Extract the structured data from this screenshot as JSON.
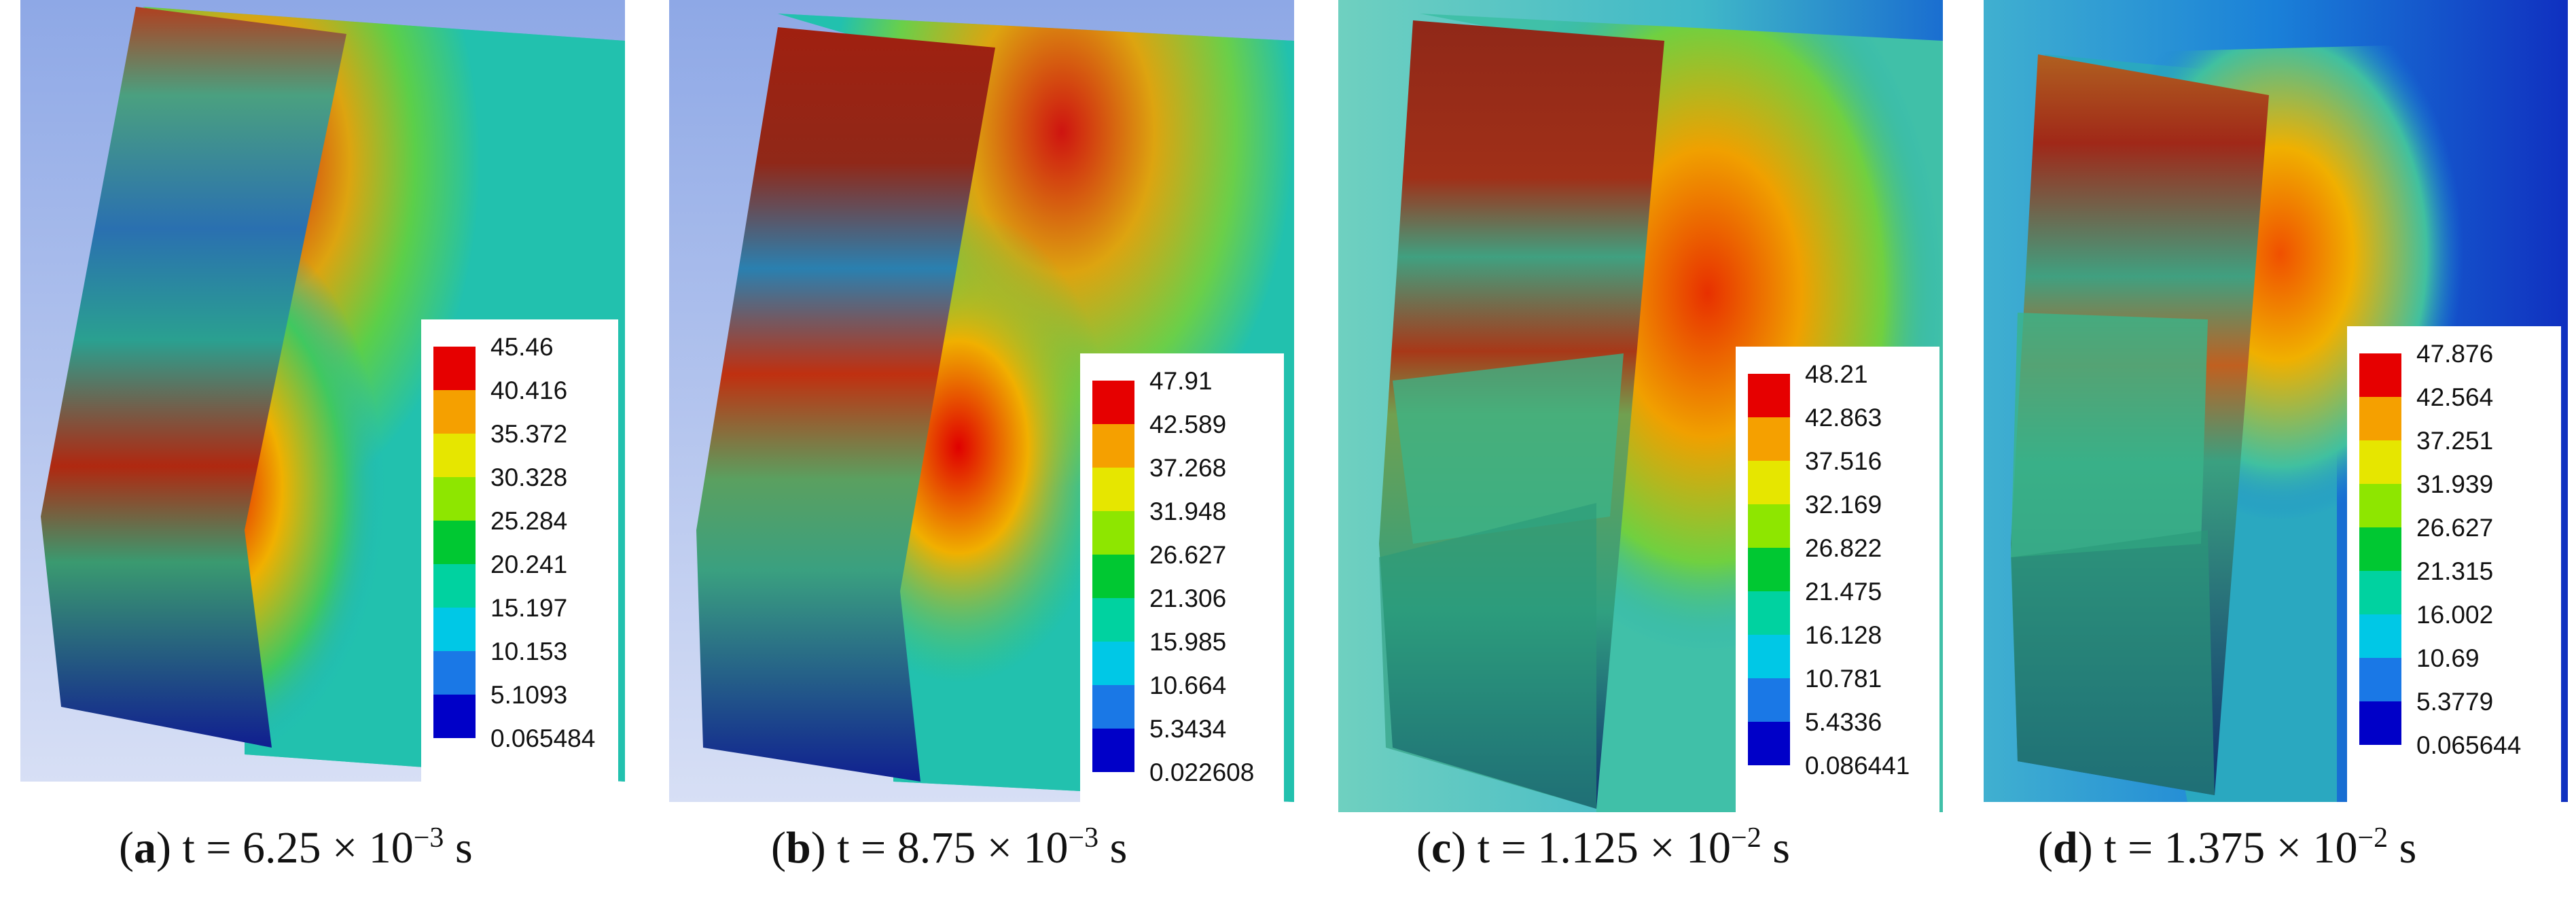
{
  "colors": {
    "scale": [
      "#0000c8",
      "#1a78e6",
      "#00c8e6",
      "#00d2a0",
      "#00c832",
      "#8ee600",
      "#e6e600",
      "#f5a000",
      "#e60000"
    ],
    "background": "#9fb4e8"
  },
  "panels": [
    {
      "id": "a",
      "letter": "a",
      "time_text": "t = 6.25 × 10",
      "exponent": "−3",
      "unit": "s",
      "legend": [
        "45.46",
        "40.416",
        "35.372",
        "30.328",
        "25.284",
        "20.241",
        "15.197",
        "10.153",
        "5.1093",
        "0.065484"
      ]
    },
    {
      "id": "b",
      "letter": "b",
      "time_text": "t = 8.75 × 10",
      "exponent": "−3",
      "unit": "s",
      "legend": [
        "47.91",
        "42.589",
        "37.268",
        "31.948",
        "26.627",
        "21.306",
        "15.985",
        "10.664",
        "5.3434",
        "0.022608"
      ]
    },
    {
      "id": "c",
      "letter": "c",
      "time_text": "t = 1.125 × 10",
      "exponent": "−2",
      "unit": "s",
      "legend": [
        "48.21",
        "42.863",
        "37.516",
        "32.169",
        "26.822",
        "21.475",
        "16.128",
        "10.781",
        "5.4336",
        "0.086441"
      ]
    },
    {
      "id": "d",
      "letter": "d",
      "time_text": "t = 1.375 × 10",
      "exponent": "−2",
      "unit": "s",
      "legend": [
        "47.876",
        "42.564",
        "37.251",
        "31.939",
        "26.627",
        "21.315",
        "16.002",
        "10.69",
        "5.3779",
        "0.065644"
      ]
    }
  ]
}
